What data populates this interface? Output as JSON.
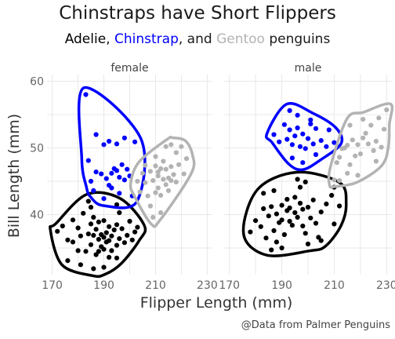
{
  "chart_data": {
    "type": "scatter",
    "title": "Chinstraps have Short Flippers",
    "subtitle": {
      "parts": [
        {
          "text": "Adelie",
          "species": "Adelie"
        },
        {
          "text": ", ",
          "species": null
        },
        {
          "text": "Chinstrap",
          "species": "Chinstrap"
        },
        {
          "text": ", and ",
          "species": null
        },
        {
          "text": "Gentoo",
          "species": "Gentoo"
        },
        {
          "text": " penguins",
          "species": null
        }
      ]
    },
    "xlabel": "Flipper Length (mm)",
    "ylabel": "Bill Length (mm)",
    "caption": "@Data from Palmer Penguins",
    "xlim": [
      168,
      232
    ],
    "ylim": [
      31,
      61
    ],
    "xticks": [
      170,
      190,
      210,
      230
    ],
    "yticks": [
      40,
      50,
      60
    ],
    "grid": true,
    "legend": "none",
    "colors": {
      "Adelie": "#000000",
      "Chinstrap": "#0000ff",
      "Gentoo": "#b3b3b3"
    },
    "facets": [
      {
        "label": "female",
        "series": [
          {
            "species": "Adelie",
            "points": [
              [
                172,
                37.5
              ],
              [
                176,
                36.2
              ],
              [
                178,
                35.9
              ],
              [
                180,
                38.0
              ],
              [
                181,
                36.8
              ],
              [
                182,
                40.2
              ],
              [
                183,
                34.5
              ],
              [
                184,
                37.1
              ],
              [
                185,
                38.6
              ],
              [
                185,
                35.5
              ],
              [
                186,
                36.9
              ],
              [
                186,
                39.6
              ],
              [
                187,
                34.0
              ],
              [
                187,
                37.8
              ],
              [
                188,
                36.3
              ],
              [
                188,
                38.9
              ],
              [
                189,
                35.2
              ],
              [
                189,
                37.0
              ],
              [
                190,
                36.6
              ],
              [
                190,
                39.1
              ],
              [
                190,
                34.8
              ],
              [
                191,
                37.3
              ],
              [
                191,
                35.9
              ],
              [
                192,
                38.2
              ],
              [
                192,
                36.1
              ],
              [
                193,
                36.8
              ],
              [
                193,
                34.6
              ],
              [
                194,
                37.7
              ],
              [
                195,
                35.4
              ],
              [
                195,
                38.5
              ],
              [
                196,
                36.4
              ],
              [
                197,
                37.9
              ],
              [
                198,
                35.8
              ],
              [
                199,
                36.9
              ],
              [
                200,
                39.0
              ],
              [
                201,
                36.2
              ],
              [
                202,
                37.4
              ],
              [
                176,
                33.1
              ],
              [
                181,
                32.5
              ],
              [
                190,
                32.1
              ],
              [
                195,
                33.5
              ],
              [
                185,
                41.1
              ],
              [
                184,
                42.0
              ],
              [
                196,
                40.3
              ],
              [
                178,
                39.2
              ],
              [
                203,
                38.1
              ],
              [
                188,
                34.5
              ],
              [
                192,
                33.6
              ],
              [
                174,
                38.3
              ],
              [
                180,
                34.6
              ],
              [
                195,
                41.5
              ],
              [
                186,
                31.9
              ]
            ]
          },
          {
            "species": "Chinstrap",
            "points": [
              [
                183,
                58.0
              ],
              [
                187,
                52.0
              ],
              [
                190,
                50.5
              ],
              [
                192,
                51.0
              ],
              [
                195,
                50.6
              ],
              [
                197,
                47.5
              ],
              [
                198,
                51.5
              ],
              [
                194,
                46.9
              ],
              [
                196,
                45.6
              ],
              [
                189,
                46.1
              ],
              [
                191,
                45.4
              ],
              [
                193,
                46.2
              ],
              [
                195,
                46.6
              ],
              [
                187,
                46.4
              ],
              [
                198,
                45.2
              ],
              [
                200,
                45.8
              ],
              [
                192,
                44.4
              ],
              [
                196,
                43.2
              ],
              [
                185,
                45.0
              ],
              [
                199,
                46.8
              ],
              [
                201,
                42.8
              ],
              [
                202,
                50.9
              ],
              [
                184,
                48.1
              ],
              [
                190,
                42.4
              ],
              [
                186,
                43.6
              ],
              [
                193,
                44.0
              ]
            ]
          },
          {
            "species": "Gentoo",
            "points": [
              [
                203,
                45.0
              ],
              [
                205,
                46.2
              ],
              [
                206,
                44.8
              ],
              [
                207,
                42.8
              ],
              [
                208,
                46.5
              ],
              [
                209,
                45.1
              ],
              [
                210,
                43.3
              ],
              [
                210,
                47.3
              ],
              [
                211,
                45.8
              ],
              [
                211,
                44.0
              ],
              [
                212,
                46.9
              ],
              [
                212,
                42.9
              ],
              [
                213,
                45.3
              ],
              [
                213,
                48.0
              ],
              [
                214,
                44.5
              ],
              [
                214,
                46.8
              ],
              [
                215,
                45.5
              ],
              [
                215,
                43.6
              ],
              [
                216,
                47.2
              ],
              [
                216,
                45.1
              ],
              [
                217,
                46.0
              ],
              [
                218,
                49.3
              ],
              [
                218,
                44.9
              ],
              [
                219,
                47.5
              ],
              [
                220,
                50.2
              ],
              [
                221,
                46.1
              ],
              [
                222,
                48.4
              ],
              [
                208,
                41.3
              ],
              [
                209,
                39.6
              ],
              [
                212,
                40.3
              ],
              [
                214,
                50.2
              ],
              [
                216,
                50.5
              ],
              [
                210,
                48.7
              ],
              [
                206,
                47.4
              ],
              [
                204,
                43.4
              ],
              [
                211,
                46.4
              ]
            ]
          }
        ]
      },
      {
        "label": "male",
        "series": [
          {
            "species": "Adelie",
            "points": [
              [
                178,
                37.4
              ],
              [
                180,
                39.1
              ],
              [
                182,
                38.2
              ],
              [
                183,
                40.9
              ],
              [
                184,
                36.5
              ],
              [
                185,
                39.8
              ],
              [
                186,
                41.2
              ],
              [
                187,
                37.6
              ],
              [
                188,
                40.1
              ],
              [
                189,
                38.8
              ],
              [
                190,
                41.4
              ],
              [
                190,
                39.2
              ],
              [
                191,
                37.0
              ],
              [
                192,
                40.6
              ],
              [
                192,
                42.3
              ],
              [
                193,
                39.0
              ],
              [
                193,
                41.0
              ],
              [
                194,
                38.4
              ],
              [
                195,
                40.3
              ],
              [
                195,
                42.6
              ],
              [
                196,
                39.6
              ],
              [
                197,
                41.7
              ],
              [
                198,
                38.3
              ],
              [
                198,
                40.8
              ],
              [
                199,
                37.2
              ],
              [
                200,
                41.1
              ],
              [
                201,
                39.5
              ],
              [
                202,
                42.2
              ],
              [
                203,
                38.7
              ],
              [
                205,
                40.4
              ],
              [
                207,
                41.6
              ],
              [
                210,
                38.6
              ],
              [
                197,
                44.1
              ],
              [
                199,
                44.9
              ],
              [
                196,
                45.3
              ],
              [
                186,
                34.7
              ],
              [
                188,
                35.9
              ],
              [
                190,
                35.0
              ],
              [
                200,
                35.6
              ],
              [
                204,
                36.6
              ],
              [
                183,
                43.2
              ],
              [
                187,
                43.6
              ],
              [
                210,
                44.1
              ],
              [
                212,
                41.3
              ],
              [
                205,
                36.1
              ],
              [
                209,
                42.9
              ]
            ]
          },
          {
            "species": "Chinstrap",
            "points": [
              [
                187,
                52.0
              ],
              [
                189,
                50.9
              ],
              [
                191,
                53.5
              ],
              [
                192,
                51.3
              ],
              [
                193,
                52.7
              ],
              [
                194,
                50.5
              ],
              [
                195,
                51.8
              ],
              [
                196,
                53.0
              ],
              [
                197,
                50.2
              ],
              [
                198,
                52.1
              ],
              [
                199,
                49.9
              ],
              [
                200,
                51.4
              ],
              [
                201,
                53.6
              ],
              [
                202,
                50.6
              ],
              [
                203,
                52.9
              ],
              [
                205,
                51.1
              ],
              [
                207,
                50.2
              ],
              [
                193,
                55.6
              ],
              [
                196,
                54.9
              ],
              [
                201,
                54.2
              ],
              [
                210,
                50.8
              ],
              [
                198,
                47.8
              ],
              [
                194,
                48.5
              ],
              [
                203,
                49.0
              ],
              [
                208,
                52.7
              ]
            ]
          },
          {
            "species": "Gentoo",
            "points": [
              [
                210,
                45.2
              ],
              [
                211,
                47.8
              ],
              [
                212,
                48.6
              ],
              [
                213,
                49.9
              ],
              [
                214,
                50.0
              ],
              [
                215,
                50.4
              ],
              [
                216,
                47.5
              ],
              [
                217,
                51.2
              ],
              [
                218,
                48.8
              ],
              [
                219,
                50.5
              ],
              [
                220,
                49.1
              ],
              [
                221,
                51.5
              ],
              [
                222,
                52.2
              ],
              [
                223,
                50.6
              ],
              [
                224,
                53.4
              ],
              [
                225,
                49.6
              ],
              [
                226,
                51.0
              ],
              [
                227,
                54.5
              ],
              [
                228,
                50.1
              ],
              [
                230,
                55.7
              ],
              [
                221,
                54.3
              ],
              [
                219,
                45.9
              ],
              [
                215,
                46.2
              ],
              [
                212,
                45.1
              ],
              [
                229,
                52.8
              ],
              [
                226,
                48.0
              ],
              [
                216,
                53.4
              ]
            ]
          }
        ]
      }
    ]
  }
}
